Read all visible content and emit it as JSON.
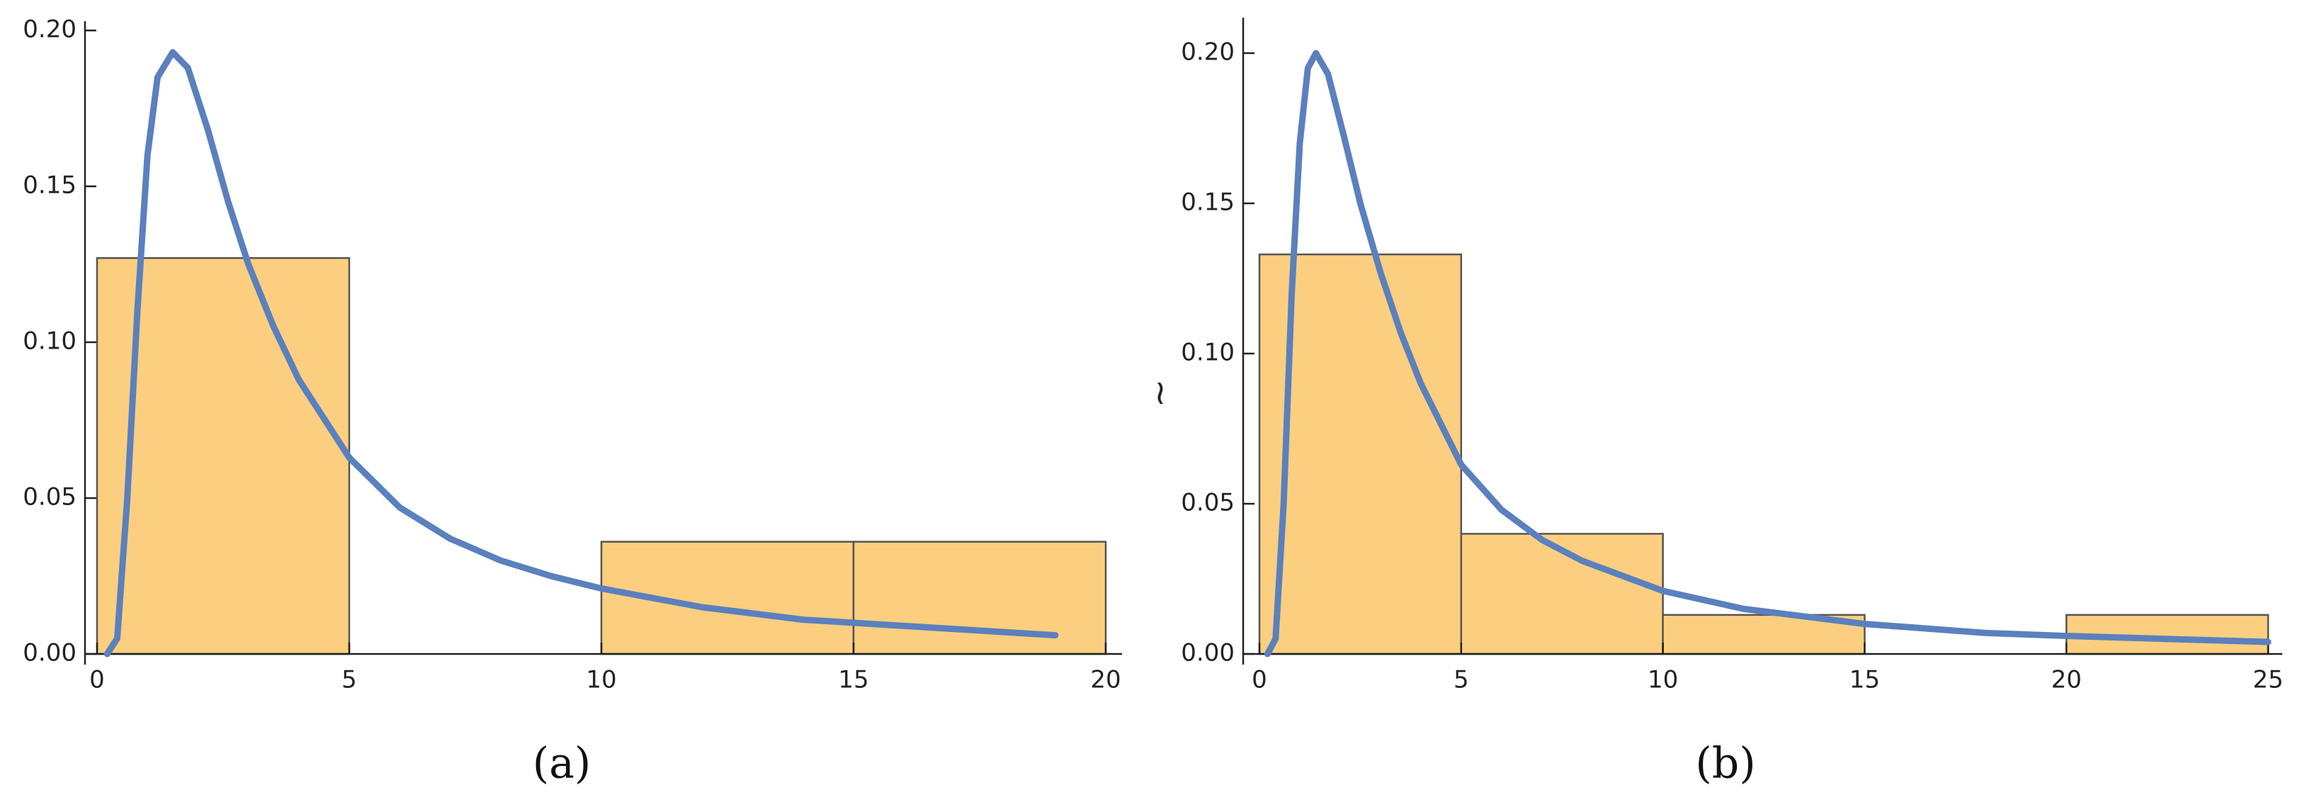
{
  "chart_data": [
    {
      "type": "histogram",
      "caption": "(a)",
      "bins": [
        0,
        5,
        10,
        15,
        20
      ],
      "values": [
        0.127,
        0,
        0.036,
        0.036
      ],
      "color": "#fbcf7f",
      "edge_color": "#555555",
      "curve": {
        "color": "#5b80be",
        "x": [
          0.2,
          0.4,
          0.6,
          0.8,
          1.0,
          1.2,
          1.5,
          1.8,
          2.2,
          2.6,
          3,
          3.5,
          4,
          5,
          6,
          7,
          8,
          9,
          10,
          12,
          14,
          16,
          19
        ],
        "values": [
          0,
          0.005,
          0.05,
          0.11,
          0.16,
          0.185,
          0.193,
          0.188,
          0.168,
          0.145,
          0.125,
          0.105,
          0.088,
          0.063,
          0.047,
          0.037,
          0.03,
          0.025,
          0.021,
          0.015,
          0.011,
          0.009,
          0.006
        ]
      },
      "xlim": [
        0,
        20
      ],
      "xticks": [
        0,
        5,
        10,
        15,
        20
      ],
      "ylim": [
        0,
        0.2
      ],
      "yticks": [
        {
          "value": 0,
          "label": "0.00"
        },
        {
          "value": 0.05,
          "label": "0.05"
        },
        {
          "value": 0.1,
          "label": "0.10"
        },
        {
          "value": 0.15,
          "label": "0.15"
        },
        {
          "value": 0.2,
          "label": "0.20"
        }
      ]
    },
    {
      "type": "histogram",
      "caption": "(b)",
      "ylabel": "~",
      "bins": [
        0,
        5,
        10,
        15,
        20,
        25
      ],
      "values": [
        0.133,
        0.04,
        0.013,
        0,
        0.013
      ],
      "color": "#fbcf7f",
      "edge_color": "#555555",
      "curve": {
        "color": "#5b80be",
        "x": [
          0.2,
          0.4,
          0.6,
          0.8,
          1.0,
          1.2,
          1.4,
          1.7,
          2.1,
          2.5,
          3,
          3.5,
          4,
          5,
          6,
          7,
          8,
          10,
          12,
          15,
          18,
          20,
          25
        ],
        "values": [
          0,
          0.005,
          0.05,
          0.12,
          0.17,
          0.195,
          0.2,
          0.193,
          0.172,
          0.15,
          0.127,
          0.107,
          0.09,
          0.063,
          0.048,
          0.038,
          0.031,
          0.021,
          0.015,
          0.01,
          0.007,
          0.006,
          0.004
        ]
      },
      "xlim": [
        0,
        25
      ],
      "xticks": [
        0,
        5,
        10,
        15,
        20,
        25
      ],
      "ylim": [
        0,
        0.2
      ],
      "yticks": [
        {
          "value": 0,
          "label": "0.00"
        },
        {
          "value": 0.05,
          "label": "0.05"
        },
        {
          "value": 0.1,
          "label": "0.10"
        },
        {
          "value": 0.15,
          "label": "0.15"
        },
        {
          "value": 0.2,
          "label": "0.20"
        }
      ]
    }
  ]
}
